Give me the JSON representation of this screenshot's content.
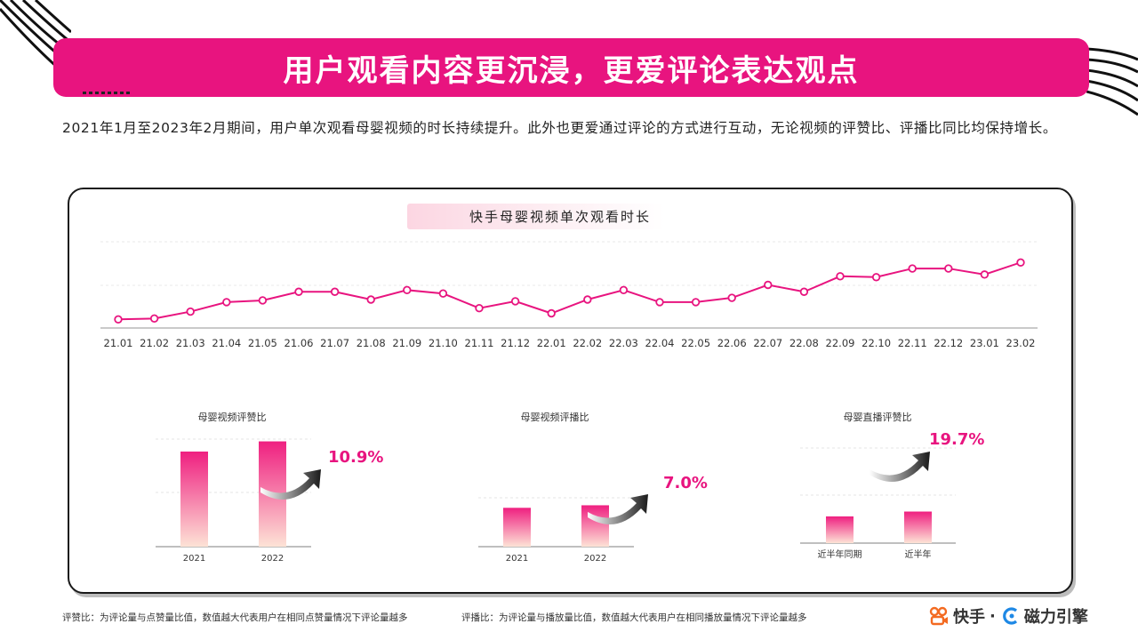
{
  "title": "用户观看内容更沉浸，更爱评论表达观点",
  "intro": "2021年1月至2023年2月期间，用户单次观看母婴视频的时长持续提升。此外也更爱通过评论的方式进行互动，无论视频的评赞比、评播比同比均保持增长。",
  "colors": {
    "accent": "#e8147f",
    "bar_top": "#ef1f80",
    "bar_bottom": "#fde3d6"
  },
  "chart_data": [
    {
      "type": "line",
      "title": "快手母婴视频单次观看时长",
      "categories": [
        "21.01",
        "21.02",
        "21.03",
        "21.04",
        "21.05",
        "21.06",
        "21.07",
        "21.08",
        "21.09",
        "21.10",
        "21.11",
        "21.12",
        "22.01",
        "22.02",
        "22.03",
        "22.04",
        "22.05",
        "22.06",
        "22.07",
        "22.08",
        "22.09",
        "22.10",
        "22.11",
        "22.12",
        "23.01",
        "23.02"
      ],
      "values": [
        10,
        11,
        19,
        30,
        32,
        42,
        42,
        33,
        44,
        40,
        23,
        31,
        17,
        33,
        44,
        30,
        30,
        35,
        50,
        42,
        60,
        59,
        69,
        69,
        62,
        76
      ],
      "grid": true,
      "ylim": [
        0,
        100
      ]
    },
    {
      "type": "bar",
      "title": "母婴视频评赞比",
      "categories": [
        "2021",
        "2022"
      ],
      "values": [
        84,
        93
      ],
      "ylim": [
        0,
        95
      ],
      "growth": "10.9%"
    },
    {
      "type": "bar",
      "title": "母婴视频评播比",
      "categories": [
        "2021",
        "2022"
      ],
      "values": [
        46,
        49
      ],
      "ylim": [
        0,
        100
      ],
      "growth": "7.0%"
    },
    {
      "type": "bar",
      "title": "母婴直播评赞比",
      "categories": [
        "近半年同期",
        "近半年"
      ],
      "values": [
        33,
        39
      ],
      "ylim": [
        0,
        100
      ],
      "growth": "19.7%"
    }
  ],
  "footnotes": {
    "left": "评赞比：为评论量与点赞量比值，数值越大代表用户在相同点赞量情况下评论量越多",
    "right": "评播比：为评论量与播放量比值，数值越大代表用户在相同播放量情况下评论量越多"
  },
  "brand": {
    "kuaishou": "快手",
    "separator": "·",
    "cili": "磁力引擎"
  }
}
